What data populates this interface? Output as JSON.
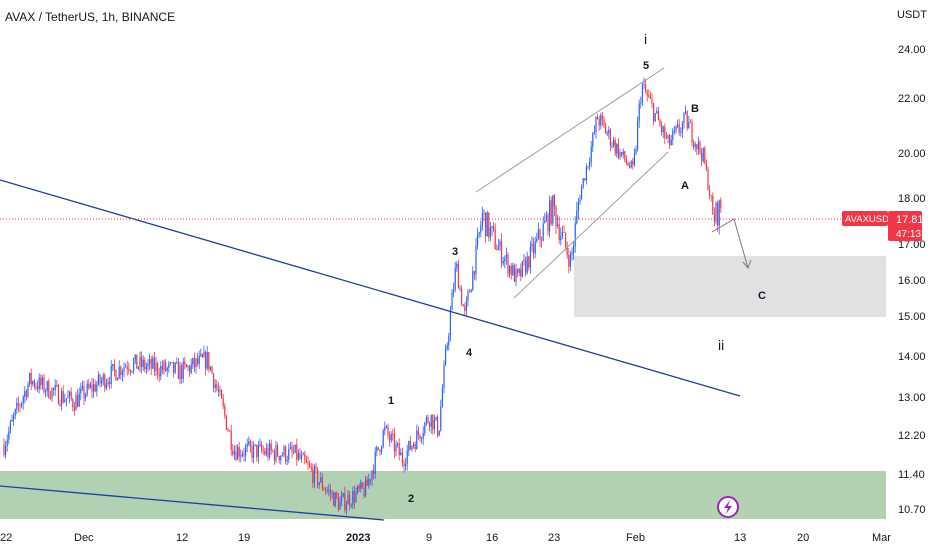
{
  "header": {
    "symbol_line": "AVAX / TetherUS, 1h, BINANCE",
    "currency": "USDT"
  },
  "price_axis": {
    "ticks": [
      "24.00",
      "22.00",
      "20.00",
      "18.00",
      "17.00",
      "16.00",
      "15.00",
      "14.00",
      "13.00",
      "12.20",
      "11.40",
      "10.70"
    ],
    "current_price_label": "17.81",
    "countdown": "47:13",
    "symbol_badge": "AVAXUSDT",
    "badge_color": "#f23645"
  },
  "time_axis": {
    "ticks": [
      "22",
      "Dec",
      "12",
      "19",
      "2023",
      "9",
      "16",
      "23",
      "Feb",
      "13",
      "20",
      "Mar"
    ],
    "bold_ticks": [
      "2023"
    ]
  },
  "annotations": {
    "wave_labels": [
      "1",
      "2",
      "3",
      "4",
      "5",
      "A",
      "B",
      "C"
    ],
    "degree_labels": [
      "i",
      "ii"
    ]
  },
  "colors": {
    "candle_up": "#2962ff",
    "candle_down": "#f23645",
    "trendline": "#1e3fa0",
    "support_zone": "#a5c8a5",
    "target_zone": "#e1e1e4",
    "channel": "#9e9e9e",
    "price_line": "#f23645",
    "lightning_badge": "#9c27b0"
  },
  "chart_data": {
    "type": "candlestick",
    "symbol": "AVAXUSDT",
    "timeframe": "1h",
    "exchange": "BINANCE",
    "current_price": 17.81,
    "x_ticks": [
      "22",
      "Dec",
      "12",
      "19",
      "2023",
      "9",
      "16",
      "23",
      "Feb",
      "13",
      "20",
      "Mar"
    ],
    "y_ticks": [
      24.0,
      22.0,
      20.0,
      18.0,
      17.0,
      16.0,
      15.0,
      14.0,
      13.0,
      12.2,
      11.4,
      10.7
    ],
    "y_scale": "log",
    "price_path": [
      {
        "date": "2022-11-22",
        "close": 12.0
      },
      {
        "date": "2022-11-25",
        "close": 13.4
      },
      {
        "date": "2022-11-30",
        "close": 12.9
      },
      {
        "date": "2022-12-06",
        "close": 13.8
      },
      {
        "date": "2022-12-12",
        "close": 13.6
      },
      {
        "date": "2022-12-15",
        "close": 13.9
      },
      {
        "date": "2022-12-18",
        "close": 11.9
      },
      {
        "date": "2022-12-25",
        "close": 11.8
      },
      {
        "date": "2022-12-30",
        "close": 10.8
      },
      {
        "date": "2023-01-02",
        "close": 11.1
      },
      {
        "date": "2023-01-04",
        "close": 12.3
      },
      {
        "date": "2023-01-06",
        "close": 11.7
      },
      {
        "date": "2023-01-09",
        "close": 12.6
      },
      {
        "date": "2023-01-10",
        "close": 12.3
      },
      {
        "date": "2023-01-12",
        "close": 16.4
      },
      {
        "date": "2023-01-13",
        "close": 15.0
      },
      {
        "date": "2023-01-15",
        "close": 17.6
      },
      {
        "date": "2023-01-19",
        "close": 16.0
      },
      {
        "date": "2023-01-23",
        "close": 17.8
      },
      {
        "date": "2023-01-25",
        "close": 16.5
      },
      {
        "date": "2023-01-28",
        "close": 21.3
      },
      {
        "date": "2023-02-01",
        "close": 19.2
      },
      {
        "date": "2023-02-02",
        "close": 22.5
      },
      {
        "date": "2023-02-05",
        "close": 20.3
      },
      {
        "date": "2023-02-07",
        "close": 21.2
      },
      {
        "date": "2023-02-09",
        "close": 19.8
      },
      {
        "date": "2023-02-10",
        "close": 17.5
      },
      {
        "date": "2023-02-11",
        "close": 17.8
      }
    ],
    "zones": [
      {
        "name": "support",
        "from": 10.7,
        "to": 11.4
      },
      {
        "name": "target",
        "from": 15.0,
        "to": 16.3
      }
    ],
    "wave_points": [
      {
        "label": "1",
        "date": "2023-01-04",
        "price": 12.9
      },
      {
        "label": "2",
        "date": "2023-01-06",
        "price": 11.0
      },
      {
        "label": "3",
        "date": "2023-01-12",
        "price": 17.0
      },
      {
        "label": "4",
        "date": "2023-01-13",
        "price": 14.3
      },
      {
        "label": "5",
        "date": "2023-02-02",
        "price": 23.5
      },
      {
        "label": "A",
        "date": "2023-02-05",
        "price": 19.4
      },
      {
        "label": "B",
        "date": "2023-02-07",
        "price": 21.7
      },
      {
        "label": "C",
        "date": "2023-02-13",
        "price": 15.5
      },
      {
        "label": "i",
        "date": "2023-02-02",
        "price": 24.7
      },
      {
        "label": "ii",
        "date": "2023-02-09",
        "price": 14.2
      }
    ]
  }
}
